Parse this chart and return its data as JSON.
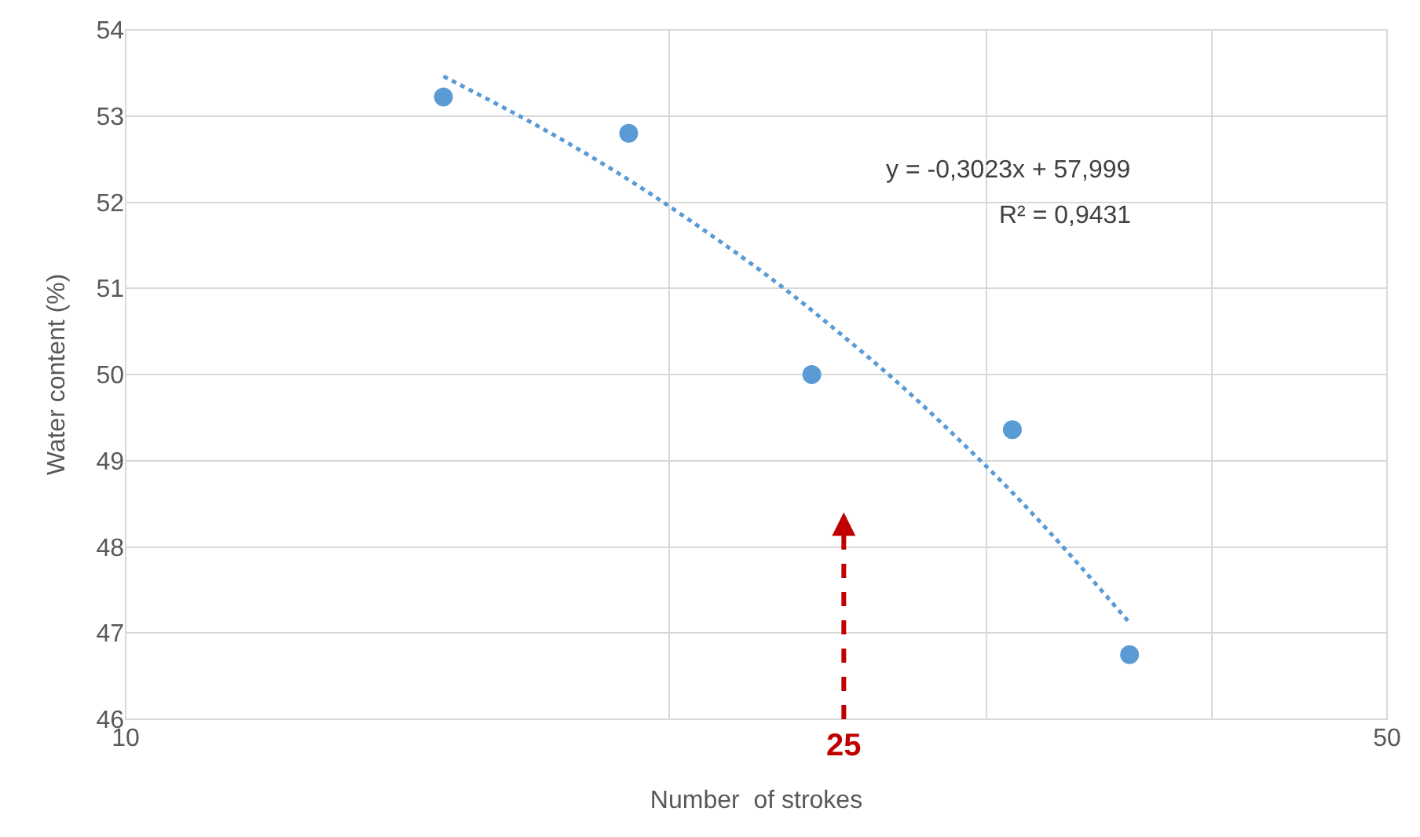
{
  "chart_data": {
    "type": "scatter",
    "xlabel": "Number  of strokes",
    "ylabel": "Water content (%)",
    "log": "x",
    "grid": true,
    "marker": "circle",
    "xlim": [
      10,
      50
    ],
    "xticks": [
      10,
      {
        "value": 20,
        "label": null
      },
      {
        "value": 30,
        "label": null
      },
      {
        "value": 40,
        "label": null
      },
      50
    ],
    "ylim": [
      46,
      54
    ],
    "yticks": [
      46,
      47,
      48,
      49,
      50,
      51,
      52,
      53,
      54
    ],
    "series": [
      {
        "color": "#5b9bd5",
        "x": [
          15,
          19,
          24,
          31,
          36
        ],
        "values": [
          53.22,
          52.8,
          50.0,
          49.36,
          46.75
        ]
      },
      {
        "type": "line",
        "color": "#5b9bd5",
        "line_style": "dotted",
        "marker": "none",
        "x": [
          15,
          17,
          19,
          21,
          23,
          25,
          27,
          29,
          31,
          33,
          36
        ],
        "values": [
          53.46,
          52.86,
          52.26,
          51.65,
          51.05,
          50.44,
          49.84,
          49.23,
          48.63,
          48.02,
          47.12
        ]
      }
    ],
    "ref_lines": [
      {
        "axis": "x",
        "value": 25,
        "label": "25",
        "color": "#c00000",
        "line_style": "dashed"
      }
    ],
    "annotations": [
      "y = -0,3023x + 57,999",
      "R² = 0,9431"
    ]
  }
}
